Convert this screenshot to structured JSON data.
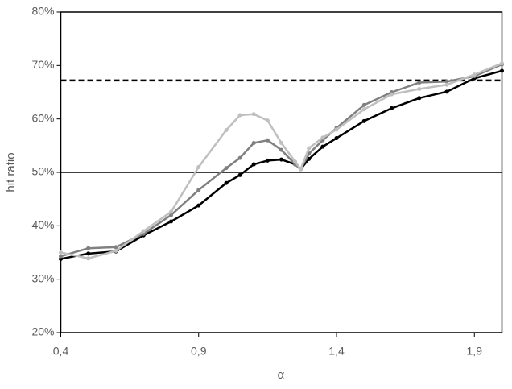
{
  "chart_data": {
    "type": "line",
    "ylabel": "hit ratio",
    "xlabel": "α",
    "x": [
      0.4,
      0.5,
      0.6,
      0.7,
      0.8,
      0.9,
      1.0,
      1.05,
      1.1,
      1.15,
      1.2,
      1.25,
      1.27,
      1.3,
      1.35,
      1.4,
      1.5,
      1.6,
      1.7,
      1.8,
      1.9,
      2.0
    ],
    "series": [
      {
        "color": "#000000",
        "values": [
          33.8,
          34.8,
          35.2,
          38.2,
          40.8,
          43.8,
          48,
          49.5,
          51.5,
          52.2,
          52.4,
          51.5,
          50.6,
          52.5,
          54.8,
          56.4,
          59.6,
          62,
          63.9,
          65.1,
          67.6,
          69
        ]
      },
      {
        "color": "#808080",
        "values": [
          34.3,
          35.8,
          36,
          38.5,
          42,
          46.7,
          50.8,
          52.7,
          55.5,
          56,
          54.2,
          51.5,
          50.6,
          53.5,
          56,
          58.3,
          62.6,
          65,
          66.8,
          67,
          68,
          70.2
        ]
      },
      {
        "color": "#bfbfbf",
        "values": [
          35,
          33.9,
          35.3,
          39,
          42.6,
          51,
          57.9,
          60.7,
          60.9,
          59.7,
          55.5,
          52,
          50.6,
          54.5,
          56.5,
          58,
          61.8,
          64.6,
          65.6,
          66.4,
          68.3,
          70.4
        ]
      }
    ],
    "hlines": [
      {
        "value": 50,
        "style": "solid"
      },
      {
        "value": 67.2,
        "style": "dashed"
      }
    ],
    "xlim": [
      0.4,
      2.0
    ],
    "xticks": [
      {
        "value": 0.4,
        "label": "0,4"
      },
      {
        "value": 0.9,
        "label": "0,9"
      },
      {
        "value": 1.4,
        "label": "1,4"
      },
      {
        "value": 1.9,
        "label": "1,9"
      }
    ],
    "ylim": [
      20,
      80
    ],
    "yticks": [
      {
        "value": 20,
        "label": "20%"
      },
      {
        "value": 30,
        "label": "30%"
      },
      {
        "value": 40,
        "label": "40%"
      },
      {
        "value": 50,
        "label": "50%"
      },
      {
        "value": 60,
        "label": "60%"
      },
      {
        "value": 70,
        "label": "70%"
      },
      {
        "value": 80,
        "label": "80%"
      }
    ]
  }
}
